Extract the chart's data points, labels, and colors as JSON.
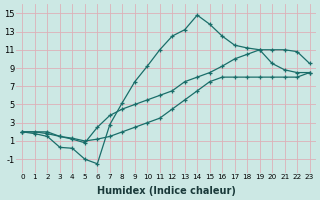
{
  "xlabel": "Humidex (Indice chaleur)",
  "xlim": [
    -0.5,
    23.5
  ],
  "ylim": [
    -2.5,
    16
  ],
  "xticks": [
    0,
    1,
    2,
    3,
    4,
    5,
    6,
    7,
    8,
    9,
    10,
    11,
    12,
    13,
    14,
    15,
    16,
    17,
    18,
    19,
    20,
    21,
    22,
    23
  ],
  "yticks": [
    -1,
    1,
    3,
    5,
    7,
    9,
    11,
    13,
    15
  ],
  "bg_color": "#cce8e4",
  "grid_color": "#ddb0b8",
  "line_color": "#1a6e6a",
  "line1_x": [
    0,
    1,
    2,
    3,
    4,
    5,
    6,
    7,
    8,
    9,
    10,
    11,
    12,
    13,
    14,
    15,
    16,
    17,
    18,
    19,
    20,
    21,
    22,
    23
  ],
  "line1_y": [
    2.0,
    1.8,
    1.5,
    0.3,
    0.2,
    -1.0,
    -1.5,
    2.8,
    5.2,
    7.5,
    9.2,
    11.0,
    12.5,
    13.2,
    14.8,
    13.8,
    12.5,
    11.5,
    11.2,
    11.0,
    9.5,
    8.8,
    8.5,
    8.5
  ],
  "line2_x": [
    0,
    1,
    2,
    3,
    4,
    5,
    6,
    7,
    8,
    9,
    10,
    11,
    12,
    13,
    14,
    15,
    16,
    17,
    18,
    19,
    20,
    21,
    22,
    23
  ],
  "line2_y": [
    2.0,
    2.0,
    1.8,
    1.5,
    1.3,
    1.0,
    1.2,
    1.5,
    2.0,
    2.5,
    3.0,
    3.5,
    4.5,
    5.5,
    6.5,
    7.5,
    8.0,
    8.0,
    8.0,
    8.0,
    8.0,
    8.0,
    8.0,
    8.5
  ],
  "line3_x": [
    0,
    2,
    3,
    4,
    5,
    6,
    7,
    8,
    9,
    10,
    11,
    12,
    13,
    14,
    15,
    16,
    17,
    18,
    19,
    20,
    21,
    22,
    23
  ],
  "line3_y": [
    2.0,
    2.0,
    1.5,
    1.2,
    0.8,
    2.5,
    3.8,
    4.5,
    5.0,
    5.5,
    6.0,
    6.5,
    7.5,
    8.0,
    8.5,
    9.2,
    10.0,
    10.5,
    11.0,
    11.0,
    11.0,
    10.8,
    9.5
  ]
}
